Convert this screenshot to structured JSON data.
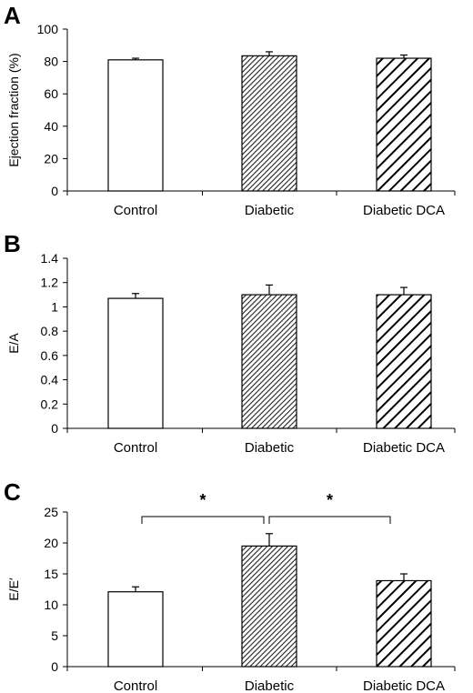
{
  "chart_data": [
    {
      "type": "bar",
      "panel": "A",
      "ylabel": "Ejection fraction (%)",
      "categories": [
        "Control",
        "Diabetic",
        "Diabetic DCA"
      ],
      "values": [
        81,
        83.5,
        82
      ],
      "errors": [
        1,
        2.5,
        2
      ],
      "ylim": [
        0,
        100
      ],
      "yticks": [
        "0",
        "20",
        "40",
        "60",
        "80",
        "100"
      ],
      "fill_patterns": [
        "white",
        "dense-hatch",
        "wide-hatch"
      ],
      "significance": []
    },
    {
      "type": "bar",
      "panel": "B",
      "ylabel": "E/A",
      "categories": [
        "Control",
        "Diabetic",
        "Diabetic DCA"
      ],
      "values": [
        1.07,
        1.1,
        1.1
      ],
      "errors": [
        0.04,
        0.08,
        0.06
      ],
      "ylim": [
        0,
        1.4
      ],
      "yticks": [
        "0",
        "0.2",
        "0.4",
        "0.6",
        "0.8",
        "1",
        "1.2",
        "1.4"
      ],
      "fill_patterns": [
        "white",
        "dense-hatch",
        "wide-hatch"
      ],
      "significance": []
    },
    {
      "type": "bar",
      "panel": "C",
      "ylabel": "E/E′",
      "categories": [
        "Control",
        "Diabetic",
        "Diabetic DCA"
      ],
      "values": [
        12.1,
        19.5,
        13.9
      ],
      "errors": [
        0.8,
        2,
        1.1
      ],
      "ylim": [
        0,
        25
      ],
      "yticks": [
        "0",
        "5",
        "10",
        "15",
        "20",
        "25"
      ],
      "fill_patterns": [
        "white",
        "dense-hatch",
        "wide-hatch"
      ],
      "significance": [
        {
          "from": 0,
          "to": 1,
          "label": "*"
        },
        {
          "from": 1,
          "to": 2,
          "label": "*"
        }
      ]
    }
  ]
}
